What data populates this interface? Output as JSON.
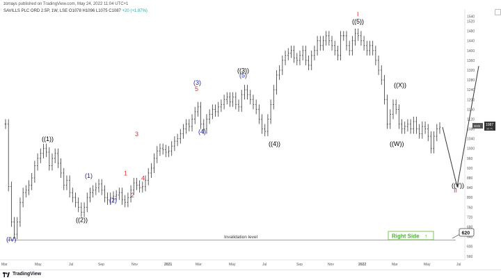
{
  "header": {
    "publisher_user": "zorrays",
    "publisher_rest": "published on TradingView.com, May 24, 2022 11:04 UTC+1",
    "symbol": "SAVILLS PLC ORD 2.5P, 1W, LSE",
    "ohlc": "O1078 H1096 L1075 C1087",
    "change": "+20 (+1.87%)"
  },
  "footer": {
    "brand": "TradingView"
  },
  "price_tag": {
    "symbol": "SVS",
    "value": "1087",
    "sub": "3d 7h"
  },
  "right_side_label": "Right Side",
  "target_label": "620",
  "invalidation_label": "Invalidation level",
  "colors": {
    "wave_black": "#000000",
    "wave_blue": "#2323b4",
    "wave_red": "#e03030",
    "invalidation": "#78c850",
    "projection": "#333333",
    "bars": "#333333"
  },
  "chart_data": {
    "type": "ohlc-bar",
    "y_axis_ticks": [
      1540,
      1520,
      1480,
      1440,
      1400,
      1360,
      1320,
      1280,
      1240,
      1200,
      1160,
      1120,
      1080,
      1040,
      1000,
      960,
      920,
      880,
      840,
      800,
      760,
      720,
      680,
      640,
      600,
      560
    ],
    "ylim": [
      540,
      1540
    ],
    "x_axis_ticks": [
      "Mar",
      "May",
      "Jul",
      "Sep",
      "Nov",
      "2021",
      "Mar",
      "May",
      "Jul",
      "Sep",
      "Nov",
      "2022",
      "Mar",
      "May",
      "Jul"
    ],
    "bars_close": [
      1100,
      845,
      700,
      650,
      700,
      780,
      820,
      830,
      850,
      880,
      930,
      960,
      980,
      1000,
      985,
      930,
      960,
      980,
      940,
      900,
      850,
      870,
      820,
      800,
      780,
      760,
      740,
      760,
      800,
      820,
      830,
      840,
      855,
      830,
      800,
      790,
      800,
      805,
      810,
      820,
      790,
      780,
      800,
      830,
      860,
      850,
      840,
      845,
      870,
      900,
      920,
      960,
      990,
      1000,
      995,
      985,
      990,
      1010,
      1030,
      1040,
      1060,
      1080,
      1100,
      1090,
      1120,
      1150,
      1170,
      1100,
      1080,
      1120,
      1140,
      1160,
      1150,
      1170,
      1180,
      1200,
      1210,
      1190,
      1210,
      1180,
      1170,
      1220,
      1240,
      1220,
      1200,
      1180,
      1160,
      1120,
      1080,
      1070,
      1120,
      1180,
      1240,
      1300,
      1320,
      1360,
      1380,
      1390,
      1400,
      1370,
      1360,
      1380,
      1400,
      1360,
      1340,
      1380,
      1400,
      1440,
      1420,
      1440,
      1460,
      1440,
      1420,
      1400,
      1380,
      1460,
      1460,
      1420,
      1400,
      1440,
      1470,
      1460,
      1440,
      1420,
      1400,
      1420,
      1400,
      1360,
      1320,
      1280,
      1200,
      1100,
      1140,
      1180,
      1160,
      1100,
      1080,
      1090,
      1100,
      1080,
      1110,
      1080,
      1060,
      1090,
      1080,
      1050,
      1000,
      1050,
      1080,
      1087
    ],
    "annotations": [
      {
        "label": "(IV)",
        "color": "blue",
        "price": 620
      },
      {
        "label": "((1))",
        "color": "black",
        "price": 1030
      },
      {
        "label": "((2))",
        "color": "black",
        "price": 700
      },
      {
        "label": "(1)",
        "color": "blue",
        "price": 880
      },
      {
        "label": "(2)",
        "color": "blue",
        "price": 780
      },
      {
        "label": "1",
        "color": "red",
        "price": 890
      },
      {
        "label": "2",
        "color": "red",
        "price": 800
      },
      {
        "label": "3",
        "color": "red",
        "price": 1050
      },
      {
        "label": "4",
        "color": "red",
        "price": 870
      },
      {
        "label": "(3)",
        "color": "blue",
        "price": 1260
      },
      {
        "label": "5",
        "color": "red",
        "price": 1235
      },
      {
        "label": "(4)",
        "color": "blue",
        "price": 1060
      },
      {
        "label": "((3))",
        "color": "black",
        "price": 1310
      },
      {
        "label": "(5)",
        "color": "blue",
        "price": 1290
      },
      {
        "label": "((4))",
        "color": "black",
        "price": 1010
      },
      {
        "label": "I",
        "color": "red",
        "price": 1540
      },
      {
        "label": "((5))",
        "color": "black",
        "price": 1510
      },
      {
        "label": "((X))",
        "color": "black",
        "price": 1250
      },
      {
        "label": "((W))",
        "color": "black",
        "price": 1010
      },
      {
        "label": "((Y))",
        "color": "black",
        "price": 840
      },
      {
        "label": "II",
        "color": "red",
        "price": 820
      }
    ],
    "invalidation_price": 640,
    "projection_path_prices": [
      1087,
      860,
      1330
    ]
  }
}
